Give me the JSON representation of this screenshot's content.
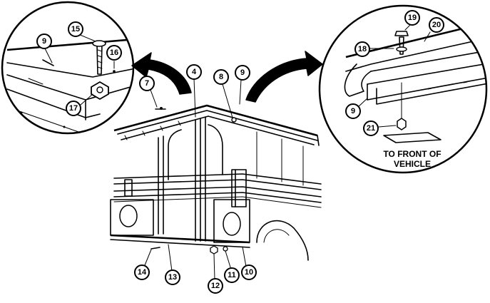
{
  "callouts": {
    "c4": "4",
    "c7": "7",
    "c8": "8",
    "c9a": "9",
    "c9b": "9",
    "c9c": "9",
    "c10": "10",
    "c11": "11",
    "c12": "12",
    "c13": "13",
    "c14": "14",
    "c15": "15",
    "c16": "16",
    "c17": "17",
    "c18": "18",
    "c19": "19",
    "c20": "20",
    "c21": "21"
  },
  "note": {
    "line1": "TO FRONT OF",
    "line2": "VEHICLE"
  }
}
